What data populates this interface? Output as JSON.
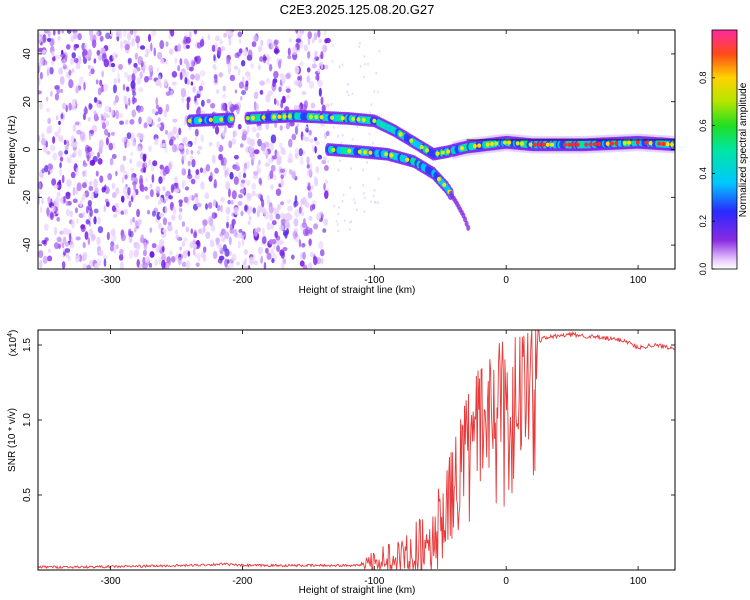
{
  "title": "C2E3.2025.125.08.20.G27",
  "chart_data": [
    {
      "type": "heatmap",
      "xlabel": "Height of straight line (km)",
      "ylabel": "Frequency (Hz)",
      "xlim": [
        -355,
        128
      ],
      "ylim": [
        -50,
        50
      ],
      "xticks": [
        -300,
        -200,
        -100,
        0,
        100
      ],
      "yticks": [
        -40,
        -20,
        0,
        20,
        40
      ],
      "colorbar": {
        "label": "Normalized spectral amplitude",
        "range": [
          0,
          1
        ],
        "ticks": [
          0.0,
          0.2,
          0.4,
          0.6,
          0.8
        ],
        "colormap": "rainbow (violet-blue-cyan-green-yellow-red-magenta)"
      },
      "features": {
        "noise_region_x": [
          -355,
          -135
        ],
        "main_track": [
          [
            -240,
            12
          ],
          [
            -200,
            13
          ],
          [
            -160,
            14
          ],
          [
            -120,
            13
          ],
          [
            -100,
            12
          ],
          [
            -85,
            8
          ],
          [
            -70,
            3
          ],
          [
            -55,
            -2
          ],
          [
            -45,
            -1
          ],
          [
            -30,
            1
          ],
          [
            -15,
            2
          ],
          [
            0,
            3
          ],
          [
            20,
            2
          ],
          [
            60,
            2
          ],
          [
            100,
            3
          ],
          [
            128,
            2
          ]
        ],
        "secondary_track": [
          [
            -135,
            0
          ],
          [
            -110,
            -1
          ],
          [
            -90,
            -2
          ],
          [
            -70,
            -5
          ],
          [
            -55,
            -10
          ],
          [
            -45,
            -16
          ],
          [
            -38,
            -22
          ],
          [
            -32,
            -28
          ],
          [
            -28,
            -34
          ]
        ]
      }
    },
    {
      "type": "line",
      "xlabel": "Height of straight line (km)",
      "ylabel": "SNR (10 * v/v)",
      "scale_label": "(x10",
      "scale_exp": "4",
      "scale_close": ")",
      "xlim": [
        -355,
        128
      ],
      "ylim": [
        0,
        1.6
      ],
      "xticks": [
        -300,
        -200,
        -100,
        0,
        100
      ],
      "yticks": [
        0.5,
        1.0,
        1.5
      ],
      "color": "#e83a3a",
      "series": [
        {
          "x": [
            -355,
            -320,
            -280,
            -240,
            -215,
            -200,
            -160,
            -120,
            -105,
            -95,
            -85,
            -75,
            -65,
            -55,
            -50,
            -45,
            -40,
            -35,
            -30,
            -25,
            -20,
            -15,
            -10,
            -5,
            0,
            5,
            10,
            15,
            20,
            25,
            30,
            40,
            50,
            60,
            70,
            80,
            90,
            100,
            110,
            120,
            128
          ],
          "values": [
            0.02,
            0.02,
            0.025,
            0.03,
            0.04,
            0.03,
            0.03,
            0.03,
            0.04,
            0.06,
            0.08,
            0.1,
            0.14,
            0.2,
            0.3,
            0.4,
            0.55,
            0.7,
            0.8,
            0.9,
            1.0,
            1.05,
            1.1,
            1.15,
            1.2,
            1.25,
            1.3,
            1.4,
            1.5,
            1.53,
            1.55,
            1.56,
            1.57,
            1.56,
            1.55,
            1.54,
            1.53,
            1.48,
            1.5,
            1.49,
            1.48
          ]
        }
      ]
    }
  ]
}
